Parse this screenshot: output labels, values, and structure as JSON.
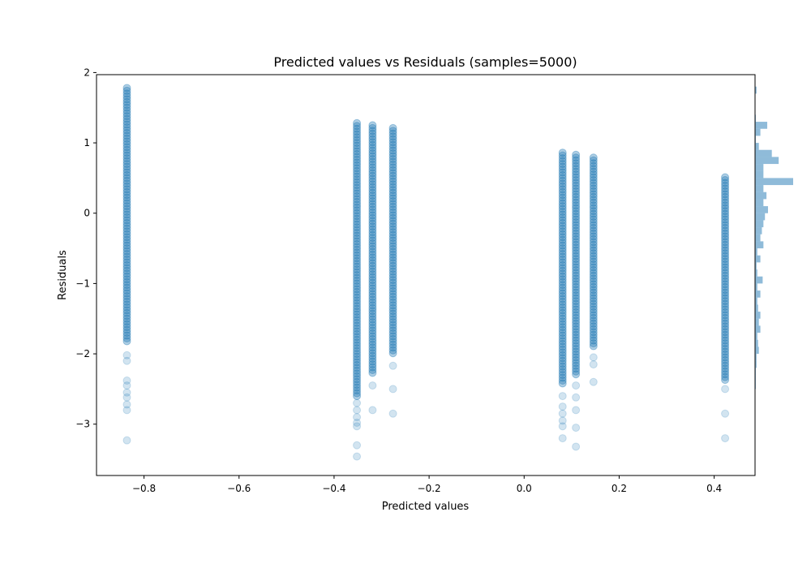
{
  "chart_data": {
    "type": "scatter",
    "title": "Predicted values vs Residuals (samples=5000)",
    "xlabel": "Predicted values",
    "ylabel": "Residuals",
    "xlim": [
      -0.9,
      0.486
    ],
    "ylim": [
      -3.73,
      1.97
    ],
    "xticks": [
      -0.8,
      -0.6,
      -0.4,
      -0.2,
      0.0,
      0.2,
      0.4
    ],
    "xtick_labels": [
      "−0.8",
      "−0.6",
      "−0.4",
      "−0.2",
      "0.0",
      "0.2",
      "0.4"
    ],
    "yticks": [
      -3,
      -2,
      -1,
      0,
      1,
      2
    ],
    "ytick_labels": [
      "−3",
      "−2",
      "−1",
      "0",
      "1",
      "2"
    ],
    "grid": false,
    "point_color": "#1f77b4",
    "point_alpha": 0.2,
    "columns": [
      {
        "x": -0.836,
        "max": 1.78,
        "dense_min": -1.85,
        "outliers": [
          -2.02,
          -2.1,
          -2.38,
          -2.45,
          -2.55,
          -2.62,
          -2.72,
          -2.8,
          -3.23
        ]
      },
      {
        "x": -0.352,
        "max": 1.28,
        "dense_min": -2.6,
        "outliers": [
          -2.7,
          -2.8,
          -2.9,
          -2.98,
          -3.03,
          -3.3,
          -3.46
        ]
      },
      {
        "x": -0.319,
        "max": 1.25,
        "dense_min": -2.3,
        "outliers": [
          -2.45,
          -2.8
        ]
      },
      {
        "x": -0.276,
        "max": 1.21,
        "dense_min": -2.0,
        "outliers": [
          -2.17,
          -2.5,
          -2.85
        ]
      },
      {
        "x": 0.081,
        "max": 0.86,
        "dense_min": -2.45,
        "outliers": [
          -2.6,
          -2.75,
          -2.85,
          -2.95,
          -3.03,
          -3.2
        ]
      },
      {
        "x": 0.109,
        "max": 0.83,
        "dense_min": -2.3,
        "outliers": [
          -2.45,
          -2.62,
          -2.8,
          -3.05,
          -3.32
        ]
      },
      {
        "x": 0.146,
        "max": 0.79,
        "dense_min": -1.9,
        "outliers": [
          -2.05,
          -2.15,
          -2.4
        ]
      },
      {
        "x": 0.423,
        "max": 0.51,
        "dense_min": -2.4,
        "outliers": [
          -2.5,
          -2.85,
          -3.2
        ]
      }
    ],
    "marginal_histogram": {
      "orientation": "horizontal",
      "color": "#1f77b4",
      "alpha": 0.5,
      "bins": [
        {
          "y0": 1.7,
          "y1": 1.8,
          "count": 2
        },
        {
          "y0": 1.3,
          "y1": 1.4,
          "count": 1
        },
        {
          "y0": 1.2,
          "y1": 1.3,
          "count": 16
        },
        {
          "y0": 1.1,
          "y1": 1.2,
          "count": 7
        },
        {
          "y0": 1.0,
          "y1": 1.1,
          "count": 1
        },
        {
          "y0": 0.9,
          "y1": 1.0,
          "count": 5
        },
        {
          "y0": 0.8,
          "y1": 0.9,
          "count": 22
        },
        {
          "y0": 0.7,
          "y1": 0.8,
          "count": 31
        },
        {
          "y0": 0.6,
          "y1": 0.7,
          "count": 11
        },
        {
          "y0": 0.5,
          "y1": 0.6,
          "count": 11
        },
        {
          "y0": 0.4,
          "y1": 0.5,
          "count": 50
        },
        {
          "y0": 0.3,
          "y1": 0.4,
          "count": 11
        },
        {
          "y0": 0.2,
          "y1": 0.3,
          "count": 15
        },
        {
          "y0": 0.1,
          "y1": 0.2,
          "count": 11
        },
        {
          "y0": 0.0,
          "y1": 0.1,
          "count": 17
        },
        {
          "y0": -0.1,
          "y1": 0.0,
          "count": 13
        },
        {
          "y0": -0.2,
          "y1": -0.1,
          "count": 11
        },
        {
          "y0": -0.3,
          "y1": -0.2,
          "count": 9
        },
        {
          "y0": -0.4,
          "y1": -0.3,
          "count": 7
        },
        {
          "y0": -0.5,
          "y1": -0.4,
          "count": 11
        },
        {
          "y0": -0.6,
          "y1": -0.5,
          "count": 3
        },
        {
          "y0": -0.7,
          "y1": -0.6,
          "count": 7
        },
        {
          "y0": -0.8,
          "y1": -0.7,
          "count": 2
        },
        {
          "y0": -0.9,
          "y1": -0.8,
          "count": 3
        },
        {
          "y0": -1.0,
          "y1": -0.9,
          "count": 10
        },
        {
          "y0": -1.1,
          "y1": -1.0,
          "count": 3
        },
        {
          "y0": -1.2,
          "y1": -1.1,
          "count": 7
        },
        {
          "y0": -1.3,
          "y1": -1.2,
          "count": 3
        },
        {
          "y0": -1.4,
          "y1": -1.3,
          "count": 4
        },
        {
          "y0": -1.5,
          "y1": -1.4,
          "count": 7
        },
        {
          "y0": -1.6,
          "y1": -1.5,
          "count": 5
        },
        {
          "y0": -1.7,
          "y1": -1.6,
          "count": 7
        },
        {
          "y0": -1.8,
          "y1": -1.7,
          "count": 3
        },
        {
          "y0": -1.9,
          "y1": -1.8,
          "count": 4
        },
        {
          "y0": -2.0,
          "y1": -1.9,
          "count": 5
        },
        {
          "y0": -2.1,
          "y1": -2.0,
          "count": 2
        },
        {
          "y0": -2.2,
          "y1": -2.1,
          "count": 2
        },
        {
          "y0": -2.3,
          "y1": -2.2,
          "count": 1
        },
        {
          "y0": -2.4,
          "y1": -2.3,
          "count": 1
        },
        {
          "y0": -2.5,
          "y1": -2.4,
          "count": 1
        }
      ]
    }
  }
}
